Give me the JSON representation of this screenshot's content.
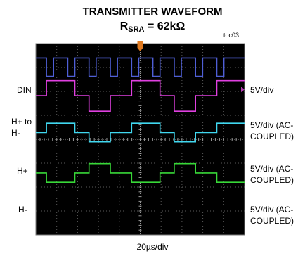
{
  "chart_data": {
    "type": "line",
    "title": "TRANSMITTER WAVEFORM",
    "subtitle": {
      "prefix": "R",
      "sub": "SRA",
      "suffix": " = 62kΩ"
    },
    "figure_ref": "toc03",
    "xlabel": "20µs/div",
    "grid": true,
    "divisions": {
      "x": 10,
      "y": 8
    },
    "background": "#000000",
    "trigger_marker_color": "#e07a20",
    "channels": [
      {
        "id": "din",
        "label_lines": [
          "DIN"
        ],
        "scale_lines": [
          "5V/div"
        ],
        "color": "#4f5fd6",
        "ref_marker": false,
        "levels": {
          "high": 3.4,
          "low": 2.63
        },
        "breakpoints": [
          0,
          0.51,
          0.85,
          1.53,
          1.87,
          2.55,
          2.89,
          3.57,
          3.91,
          4.59,
          4.93,
          5.61,
          5.95,
          6.63,
          6.97,
          7.65,
          7.99,
          8.67,
          9.01,
          10
        ],
        "start_state": "high"
      },
      {
        "id": "hplus_hminus",
        "label_lines": [
          "H+ to",
          "H-"
        ],
        "scale_lines": [
          "5V/div (AC-",
          "COUPLED)"
        ],
        "color": "#e040e0",
        "ref_marker": true,
        "ref_marker_color": "#b03ab0",
        "ref_level": 2.08,
        "levels": {
          "high": 2.45,
          "mid": 1.82,
          "low": 1.17
        },
        "sequence": [
          [
            "mid",
            0,
            0.51
          ],
          [
            "high",
            0.51,
            1.87
          ],
          [
            "mid",
            1.87,
            2.55
          ],
          [
            "low",
            2.55,
            3.57
          ],
          [
            "mid",
            3.57,
            4.59
          ],
          [
            "high",
            4.59,
            5.95
          ],
          [
            "mid",
            5.95,
            6.63
          ],
          [
            "low",
            6.63,
            7.65
          ],
          [
            "mid",
            7.65,
            8.67
          ],
          [
            "high",
            8.67,
            10
          ]
        ]
      },
      {
        "id": "hplus",
        "label_lines": [
          "H+"
        ],
        "scale_lines": [
          "5V/div (AC-",
          "COUPLED)"
        ],
        "color": "#40d8f0",
        "ref_marker": false,
        "levels": {
          "high": 0.67,
          "mid": 0.28,
          "low": -0.11
        },
        "sequence": [
          [
            "mid",
            0,
            0.51
          ],
          [
            "high",
            0.51,
            1.87
          ],
          [
            "mid",
            1.87,
            2.55
          ],
          [
            "low",
            2.55,
            3.57
          ],
          [
            "mid",
            3.57,
            4.59
          ],
          [
            "high",
            4.59,
            5.95
          ],
          [
            "mid",
            5.95,
            6.63
          ],
          [
            "low",
            6.63,
            7.65
          ],
          [
            "mid",
            7.65,
            8.67
          ],
          [
            "high",
            8.67,
            10
          ]
        ]
      },
      {
        "id": "hminus",
        "label_lines": [
          "H-"
        ],
        "scale_lines": [
          "5V/div (AC-",
          "COUPLED)"
        ],
        "color": "#38d838",
        "ref_marker": false,
        "levels": {
          "high": -1.02,
          "mid": -1.41,
          "low": -1.8
        },
        "sequence": [
          [
            "mid",
            0,
            0.51
          ],
          [
            "low",
            0.51,
            1.87
          ],
          [
            "mid",
            1.87,
            2.55
          ],
          [
            "high",
            2.55,
            3.57
          ],
          [
            "mid",
            3.57,
            4.59
          ],
          [
            "low",
            4.59,
            5.95
          ],
          [
            "mid",
            5.95,
            6.63
          ],
          [
            "high",
            6.63,
            7.65
          ],
          [
            "mid",
            7.65,
            8.67
          ],
          [
            "low",
            8.67,
            10
          ]
        ]
      }
    ]
  }
}
